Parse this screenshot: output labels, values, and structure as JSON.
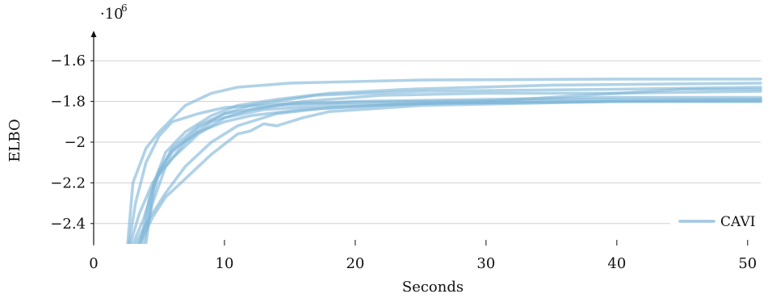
{
  "chart_data": {
    "type": "line",
    "xlabel": "Seconds",
    "ylabel": "ELBO",
    "y_scale_label": "·10",
    "y_scale_exponent": "6",
    "xlim": [
      0,
      51
    ],
    "ylim": [
      -2.5,
      -1.5
    ],
    "x_ticks": [
      0,
      10,
      20,
      30,
      40,
      50
    ],
    "x_tick_labels": [
      "0",
      "10",
      "20",
      "30",
      "40",
      "50"
    ],
    "y_ticks": [
      -2.4,
      -2.2,
      -2.0,
      -1.8,
      -1.6
    ],
    "y_tick_labels": [
      "−2.4",
      "−2.2",
      "−2",
      "−1.8",
      "−1.6"
    ],
    "grid": "horizontal",
    "legend": {
      "position": "bottom-right",
      "entries": [
        "CAVI"
      ]
    },
    "color": "#7fb6d9",
    "series": [
      {
        "name": "CAVI",
        "x": [
          2.6,
          3,
          4,
          5,
          7,
          9,
          11,
          15,
          25,
          40,
          51
        ],
        "y": [
          -2.5,
          -2.2,
          -2.03,
          -1.95,
          -1.82,
          -1.76,
          -1.73,
          -1.71,
          -1.695,
          -1.69,
          -1.69
        ]
      },
      {
        "x": [
          2.7,
          3.2,
          4,
          5,
          6,
          8,
          10,
          15,
          25,
          40,
          51
        ],
        "y": [
          -2.5,
          -2.3,
          -2.1,
          -1.97,
          -1.9,
          -1.86,
          -1.83,
          -1.81,
          -1.8,
          -1.79,
          -1.79
        ]
      },
      {
        "x": [
          2.8,
          3.5,
          4.5,
          6,
          8,
          10,
          13,
          18,
          25,
          40,
          51
        ],
        "y": [
          -2.5,
          -2.35,
          -2.2,
          -2.08,
          -1.96,
          -1.88,
          -1.84,
          -1.82,
          -1.81,
          -1.8,
          -1.8
        ]
      },
      {
        "x": [
          3,
          3.8,
          4.8,
          6,
          8,
          10,
          14,
          20,
          30,
          40,
          51
        ],
        "y": [
          -2.5,
          -2.38,
          -2.18,
          -2.05,
          -1.93,
          -1.86,
          -1.82,
          -1.8,
          -1.79,
          -1.78,
          -1.78
        ]
      },
      {
        "x": [
          3.2,
          4,
          5,
          6,
          8,
          10,
          12,
          17,
          25,
          40,
          51
        ],
        "y": [
          -2.5,
          -2.4,
          -2.15,
          -2.03,
          -1.92,
          -1.86,
          -1.82,
          -1.77,
          -1.75,
          -1.74,
          -1.73
        ]
      },
      {
        "x": [
          3.4,
          4.2,
          5.5,
          7,
          9,
          11,
          14,
          18,
          25,
          40,
          51
        ],
        "y": [
          -2.5,
          -2.38,
          -2.25,
          -2.12,
          -2.0,
          -1.92,
          -1.86,
          -1.83,
          -1.81,
          -1.8,
          -1.8
        ]
      },
      {
        "x": [
          3.5,
          4.5,
          5.5,
          7,
          9,
          11,
          12,
          13,
          14,
          16,
          18,
          25,
          40,
          51
        ],
        "y": [
          -2.5,
          -2.37,
          -2.27,
          -2.18,
          -2.06,
          -1.96,
          -1.945,
          -1.91,
          -1.92,
          -1.88,
          -1.85,
          -1.82,
          -1.8,
          -1.79
        ]
      },
      {
        "x": [
          3.6,
          4.3,
          5,
          6,
          8,
          10,
          12,
          16,
          22,
          30,
          45,
          51
        ],
        "y": [
          -2.5,
          -2.26,
          -2.14,
          -2.04,
          -1.95,
          -1.9,
          -1.87,
          -1.84,
          -1.82,
          -1.8,
          -1.74,
          -1.74
        ]
      },
      {
        "x": [
          3.8,
          4.5,
          5.5,
          7,
          9,
          12,
          16,
          22,
          30,
          40,
          51
        ],
        "y": [
          -2.5,
          -2.3,
          -2.12,
          -2.0,
          -1.9,
          -1.84,
          -1.8,
          -1.77,
          -1.76,
          -1.76,
          -1.75
        ]
      },
      {
        "x": [
          4,
          4.6,
          5.5,
          7,
          9,
          11,
          14,
          18,
          24,
          35,
          51
        ],
        "y": [
          -2.5,
          -2.2,
          -2.05,
          -1.95,
          -1.87,
          -1.82,
          -1.79,
          -1.76,
          -1.74,
          -1.72,
          -1.71
        ]
      }
    ]
  }
}
